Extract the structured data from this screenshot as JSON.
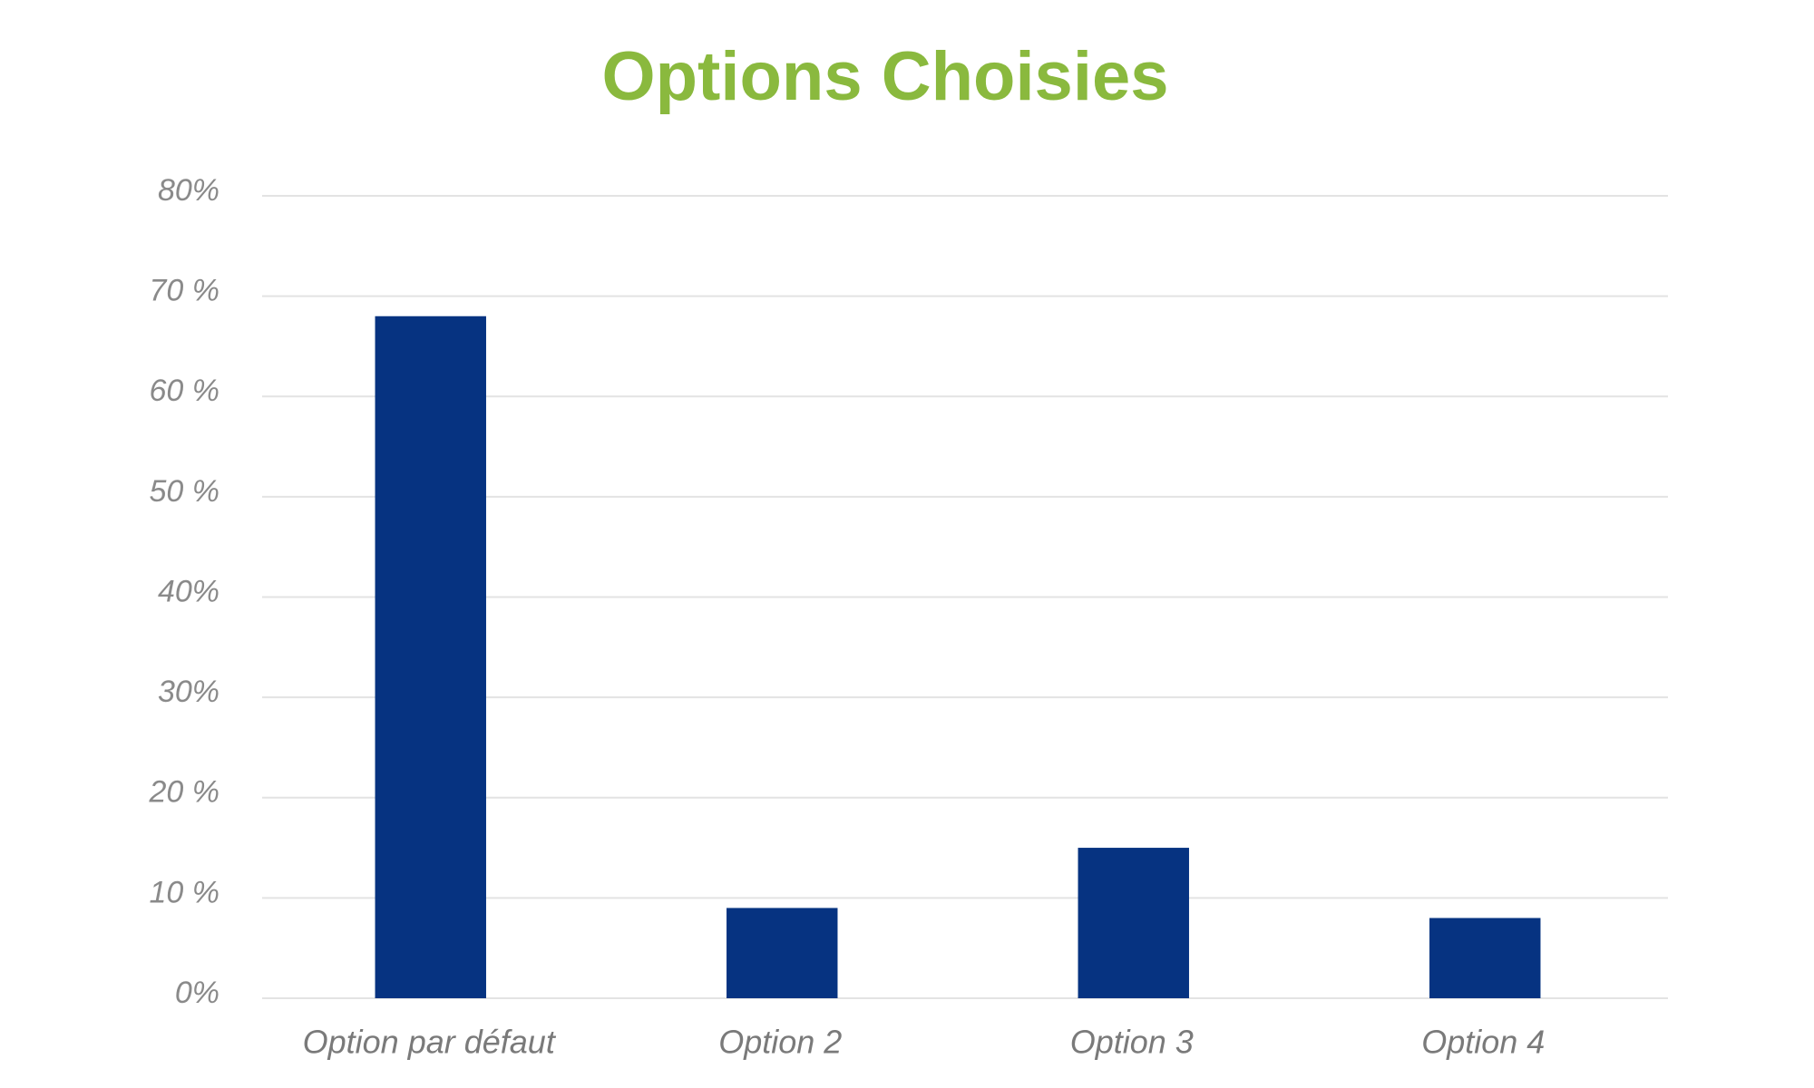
{
  "chart_data": {
    "type": "bar",
    "title": "Options Choisies",
    "categories": [
      "Option par défaut",
      "Option 2",
      "Option 3",
      "Option 4"
    ],
    "values": [
      68,
      9,
      15,
      8
    ],
    "color": "#063381",
    "ylim": [
      0,
      80
    ],
    "yticks": [
      {
        "value": 0,
        "label": "0%"
      },
      {
        "value": 10,
        "label": "10 %"
      },
      {
        "value": 20,
        "label": "20 %"
      },
      {
        "value": 30,
        "label": "30%"
      },
      {
        "value": 40,
        "label": "40%"
      },
      {
        "value": 50,
        "label": "50 %"
      },
      {
        "value": 60,
        "label": "60 %"
      },
      {
        "value": 70,
        "label": "70 %"
      },
      {
        "value": 80,
        "label": "80%"
      }
    ],
    "grid": true
  }
}
